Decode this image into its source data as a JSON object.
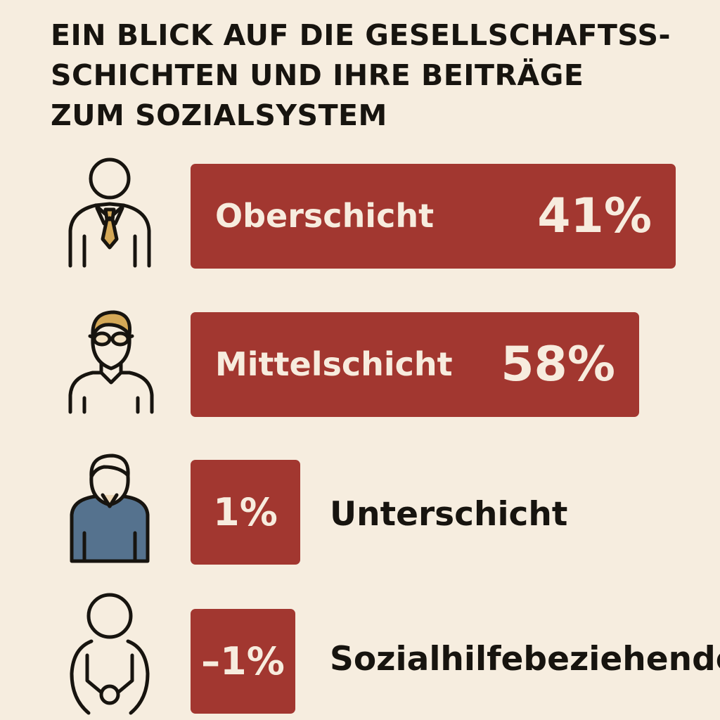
{
  "title": {
    "line1": "EIN BLICK AUF DIE GESELLSCHAFTSS-",
    "line2": "SCHICHTEN UND IHRE BEITRÄGE",
    "line3": "ZUM SOZIALSYSTEM"
  },
  "colors": {
    "background": "#f6eddf",
    "bar": "#a23730",
    "bar_text": "#f7ecde",
    "text": "#17140f",
    "shirt": "#55728e",
    "tie": "#d4a857",
    "skin": "#eed9b9"
  },
  "chart_data": {
    "type": "bar",
    "orientation": "horizontal",
    "title": "EIN BLICK AUF DIE GESELLSCHAFTSSCHICHTEN UND IHRE BEITRÄGE ZUM SOZIALSYSTEM",
    "unit": "%",
    "categories": [
      "Oberschicht",
      "Mittelschicht",
      "Unterschicht",
      "Sozialhilfebeziehende"
    ],
    "values": [
      41,
      58,
      1,
      -1
    ],
    "value_labels": [
      "41%",
      "58%",
      "1%",
      "–1%"
    ],
    "icons": [
      "upper-class-person-icon",
      "middle-class-person-icon",
      "lower-class-person-icon",
      "welfare-recipient-person-icon"
    ]
  }
}
